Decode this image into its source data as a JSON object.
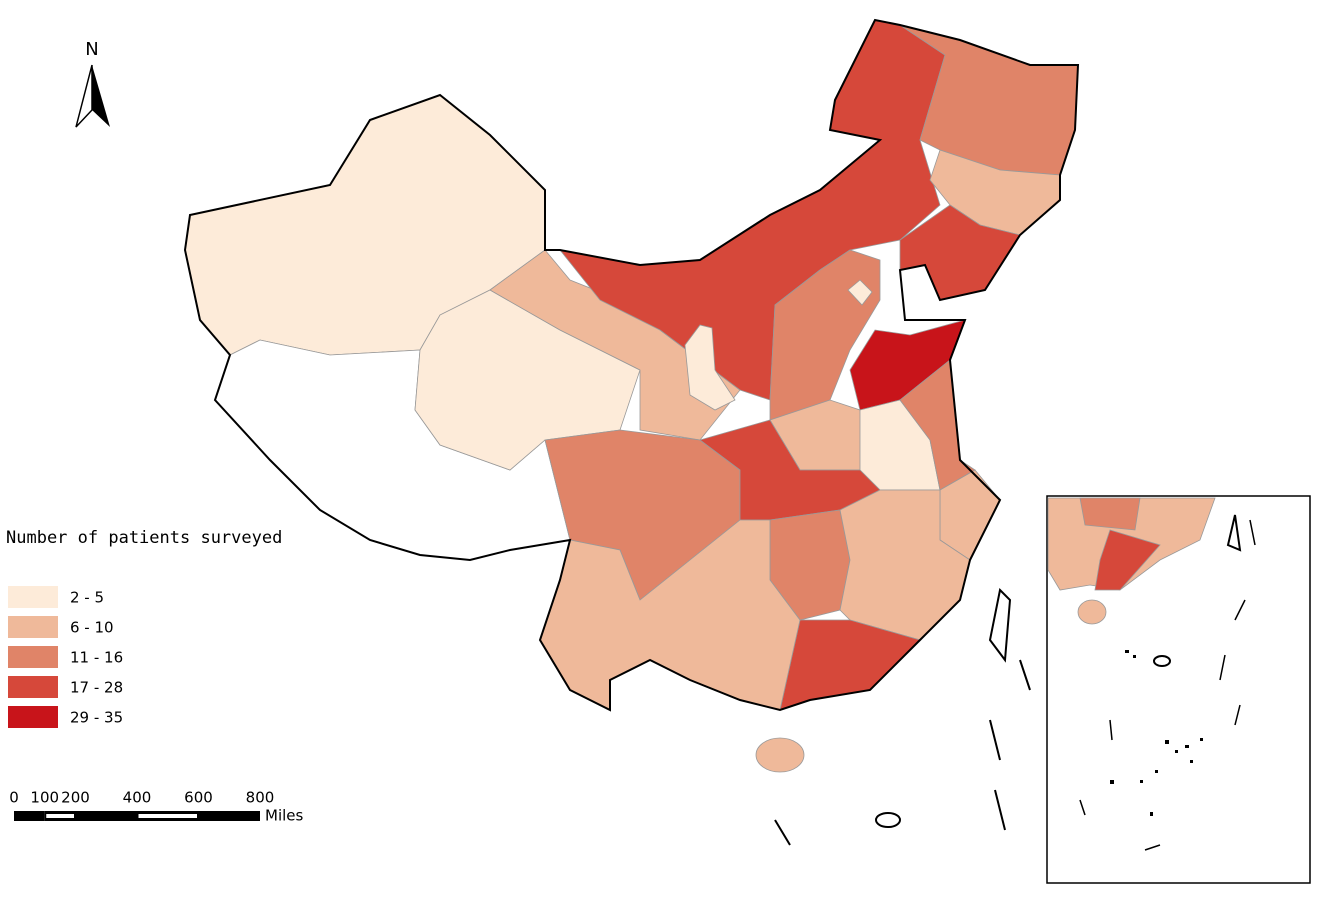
{
  "north_label": "N",
  "legend": {
    "title": "Number of patients surveyed",
    "classes": [
      {
        "label": "2 - 5",
        "color": "#fdebd9"
      },
      {
        "label": "6 - 10",
        "color": "#efb99a"
      },
      {
        "label": "11 - 16",
        "color": "#e08468"
      },
      {
        "label": "17 - 28",
        "color": "#d6483a"
      },
      {
        "label": "29 - 35",
        "color": "#c8141a"
      }
    ]
  },
  "scale_bar": {
    "ticks": [
      0,
      100,
      200,
      400,
      600,
      800
    ],
    "unit": "Miles"
  }
}
